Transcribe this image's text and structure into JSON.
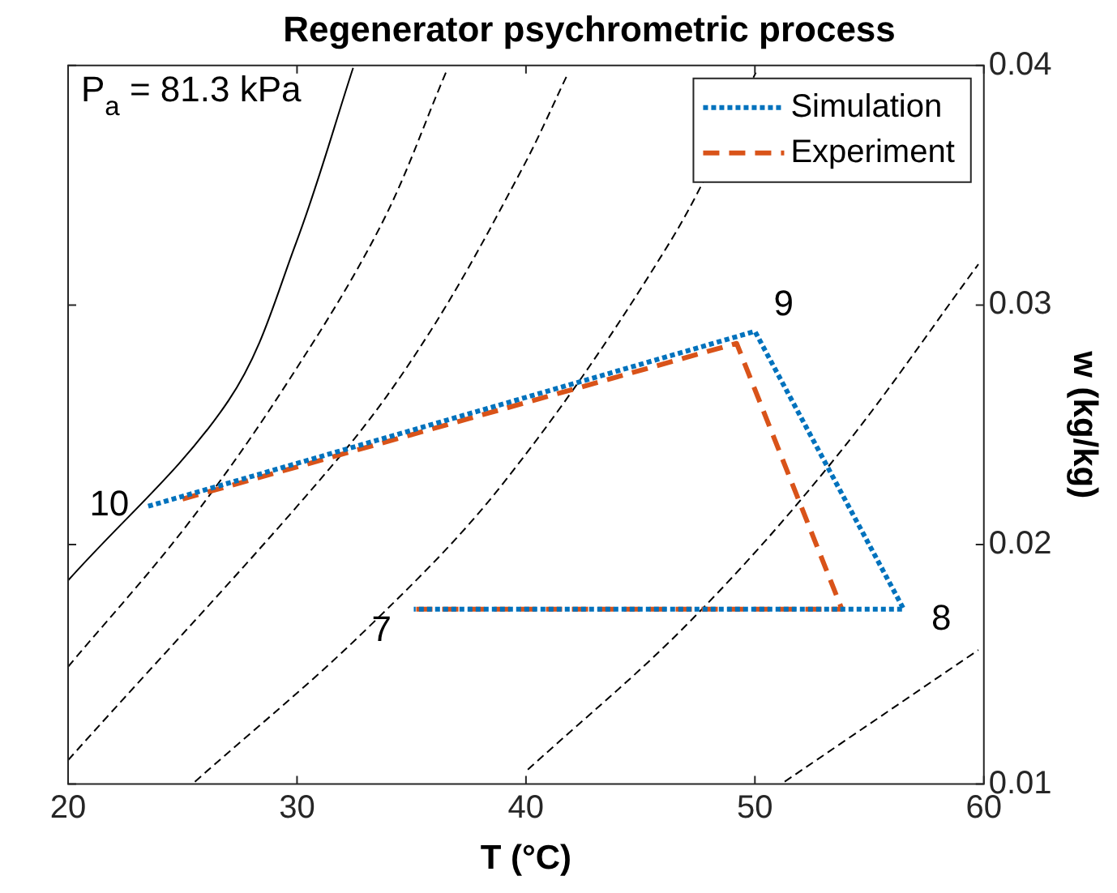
{
  "chart_data": {
    "type": "line",
    "title": "Regenerator psychrometric process",
    "xlabel": "T (°C)",
    "ylabel": "w (kg/kg)",
    "xlim": [
      20,
      60
    ],
    "xticks": [
      20,
      30,
      40,
      50,
      60
    ],
    "ylim": [
      0.01,
      0.04
    ],
    "yticks": [
      0.01,
      0.02,
      0.03,
      0.04
    ],
    "grid": false,
    "legend": "top right",
    "marker": "none",
    "series": [
      {
        "name": "Simulation",
        "color": "#0072bd",
        "line_style": "dotted",
        "x": [
          23.5,
          50.0,
          56.5,
          35.1
        ],
        "values": [
          0.0216,
          0.0289,
          0.0173,
          0.0173
        ]
      },
      {
        "name": "Experiment",
        "color": "#d95319",
        "line_style": "dashed",
        "x": [
          25.0,
          49.2,
          53.8,
          35.1
        ],
        "values": [
          0.0219,
          0.0284,
          0.0173,
          0.0173
        ]
      },
      {
        "color": "#000000",
        "line_style": "solid",
        "x": [
          20,
          27.0,
          29.96,
          32.45
        ],
        "values": [
          0.0185,
          0.026,
          0.0326,
          0.0399
        ]
      },
      {
        "color": "#000000",
        "line_style": "dashed",
        "x": [
          20,
          25.1,
          29.4,
          33.65,
          36.5
        ],
        "values": [
          0.0149,
          0.0207,
          0.0265,
          0.0333,
          0.0397
        ]
      },
      {
        "color": "#000000",
        "line_style": "dashed",
        "x": [
          20,
          31.8,
          35.82,
          39.84,
          41.85
        ],
        "values": [
          0.011,
          0.0236,
          0.0289,
          0.0357,
          0.0397
        ]
      },
      {
        "color": "#000000",
        "line_style": "dashed",
        "x": [
          25.54,
          32.85,
          39.04,
          46.27,
          50.04
        ],
        "values": [
          0.0101,
          0.0163,
          0.0226,
          0.0326,
          0.0397
        ]
      },
      {
        "color": "#000000",
        "line_style": "dashed",
        "x": [
          40.08,
          47.07,
          53.5,
          59.76
        ],
        "values": [
          0.0106,
          0.0167,
          0.0236,
          0.0317
        ]
      },
      {
        "color": "#000000",
        "line_style": "dashed",
        "x": [
          51.3,
          59.76
        ],
        "values": [
          0.0101,
          0.0156
        ]
      }
    ],
    "annotations": [
      "P$_{a}$ = 81.3 kPa",
      {
        "text": "10",
        "x": 23.5,
        "y": 0.0216
      },
      {
        "text": "9",
        "x": 50.0,
        "y": 0.0289
      },
      {
        "text": "8",
        "x": 56.5,
        "y": 0.0173
      },
      {
        "text": "7",
        "x": 35.1,
        "y": 0.0173
      }
    ]
  }
}
